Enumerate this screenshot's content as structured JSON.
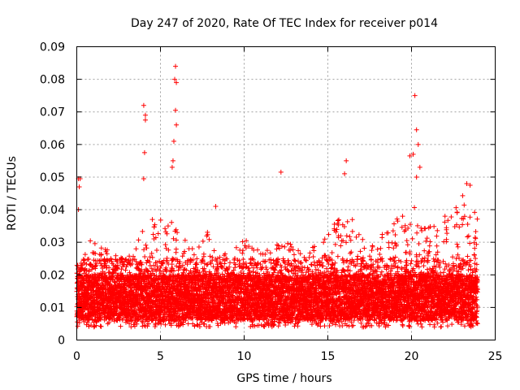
{
  "chart_data": {
    "type": "scatter",
    "title": "Day 247 of 2020, Rate Of TEC Index for receiver p014",
    "xlabel": "GPS time / hours",
    "ylabel": "ROTI / TECUs",
    "xlim": [
      0,
      25
    ],
    "ylim": [
      0,
      0.09
    ],
    "x_ticks": [
      "0",
      "5",
      "10",
      "15",
      "20",
      "25"
    ],
    "y_ticks": [
      "0",
      "0.01",
      "0.02",
      "0.03",
      "0.04",
      "0.05",
      "0.06",
      "0.07",
      "0.08",
      "0.09"
    ],
    "grid": true,
    "marker": "+",
    "color": "#ff0000",
    "series": [
      {
        "name": "ROTI",
        "description": "Dense scatter of ~8600 samples between 0 and 24 h, baseline mostly 0.005-0.025 TECU",
        "baseline_range": [
          0.005,
          0.025
        ],
        "notable_points": [
          {
            "x": 0.1,
            "y": 0.0495
          },
          {
            "x": 0.2,
            "y": 0.0495
          },
          {
            "x": 0.15,
            "y": 0.047
          },
          {
            "x": 0.1,
            "y": 0.04
          },
          {
            "x": 4.0,
            "y": 0.072
          },
          {
            "x": 4.1,
            "y": 0.069
          },
          {
            "x": 4.1,
            "y": 0.0675
          },
          {
            "x": 4.05,
            "y": 0.0575
          },
          {
            "x": 4.0,
            "y": 0.0495
          },
          {
            "x": 5.9,
            "y": 0.084
          },
          {
            "x": 5.85,
            "y": 0.08
          },
          {
            "x": 5.95,
            "y": 0.079
          },
          {
            "x": 5.9,
            "y": 0.0705
          },
          {
            "x": 5.95,
            "y": 0.066
          },
          {
            "x": 5.8,
            "y": 0.061
          },
          {
            "x": 5.75,
            "y": 0.055
          },
          {
            "x": 5.7,
            "y": 0.053
          },
          {
            "x": 8.3,
            "y": 0.041
          },
          {
            "x": 12.2,
            "y": 0.0515
          },
          {
            "x": 16.1,
            "y": 0.055
          },
          {
            "x": 16.0,
            "y": 0.051
          },
          {
            "x": 20.2,
            "y": 0.075
          },
          {
            "x": 20.3,
            "y": 0.0645
          },
          {
            "x": 20.4,
            "y": 0.06
          },
          {
            "x": 20.1,
            "y": 0.057
          },
          {
            "x": 19.9,
            "y": 0.0565
          },
          {
            "x": 20.5,
            "y": 0.053
          },
          {
            "x": 20.3,
            "y": 0.05
          },
          {
            "x": 23.3,
            "y": 0.048
          },
          {
            "x": 23.5,
            "y": 0.0475
          },
          {
            "x": 22.0,
            "y": 0.038
          }
        ]
      }
    ]
  }
}
